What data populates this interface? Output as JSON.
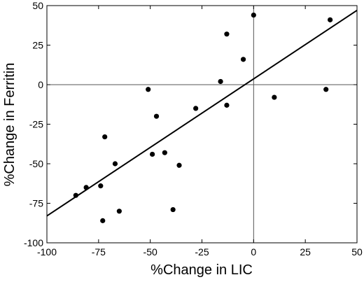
{
  "chart_data": {
    "type": "scatter",
    "xlabel": "%Change in LIC",
    "ylabel": "%Change in Ferritin",
    "xlim": [
      -100,
      50
    ],
    "ylim": [
      -100,
      50
    ],
    "x_ticks": [
      -100,
      -75,
      -50,
      -25,
      0,
      25,
      50
    ],
    "y_ticks": [
      -100,
      -75,
      -50,
      -25,
      0,
      25,
      50
    ],
    "x_tick_labels": [
      "-100",
      "-75",
      "-50",
      "-25",
      "0",
      "25",
      "50"
    ],
    "y_tick_labels": [
      "-100",
      "-75",
      "-50",
      "-25",
      "0",
      "25",
      "50"
    ],
    "reference_lines": {
      "x": 0,
      "y": 0
    },
    "points": [
      {
        "x": 0,
        "y": 44
      },
      {
        "x": 37,
        "y": 41
      },
      {
        "x": -13,
        "y": 32
      },
      {
        "x": -5,
        "y": 16
      },
      {
        "x": -16,
        "y": 2
      },
      {
        "x": 35,
        "y": -3
      },
      {
        "x": -51,
        "y": -3
      },
      {
        "x": 10,
        "y": -8
      },
      {
        "x": -13,
        "y": -13
      },
      {
        "x": -28,
        "y": -15
      },
      {
        "x": -47,
        "y": -20
      },
      {
        "x": -72,
        "y": -33
      },
      {
        "x": -43,
        "y": -43
      },
      {
        "x": -49,
        "y": -44
      },
      {
        "x": -67,
        "y": -50
      },
      {
        "x": -36,
        "y": -51
      },
      {
        "x": -74,
        "y": -64
      },
      {
        "x": -81,
        "y": -65
      },
      {
        "x": -86,
        "y": -70
      },
      {
        "x": -39,
        "y": -79
      },
      {
        "x": -65,
        "y": -80
      },
      {
        "x": -73,
        "y": -86
      }
    ],
    "fit_line": {
      "x": [
        -100,
        50
      ],
      "y": [
        -83,
        47
      ]
    },
    "grid": false,
    "legend": "none"
  }
}
